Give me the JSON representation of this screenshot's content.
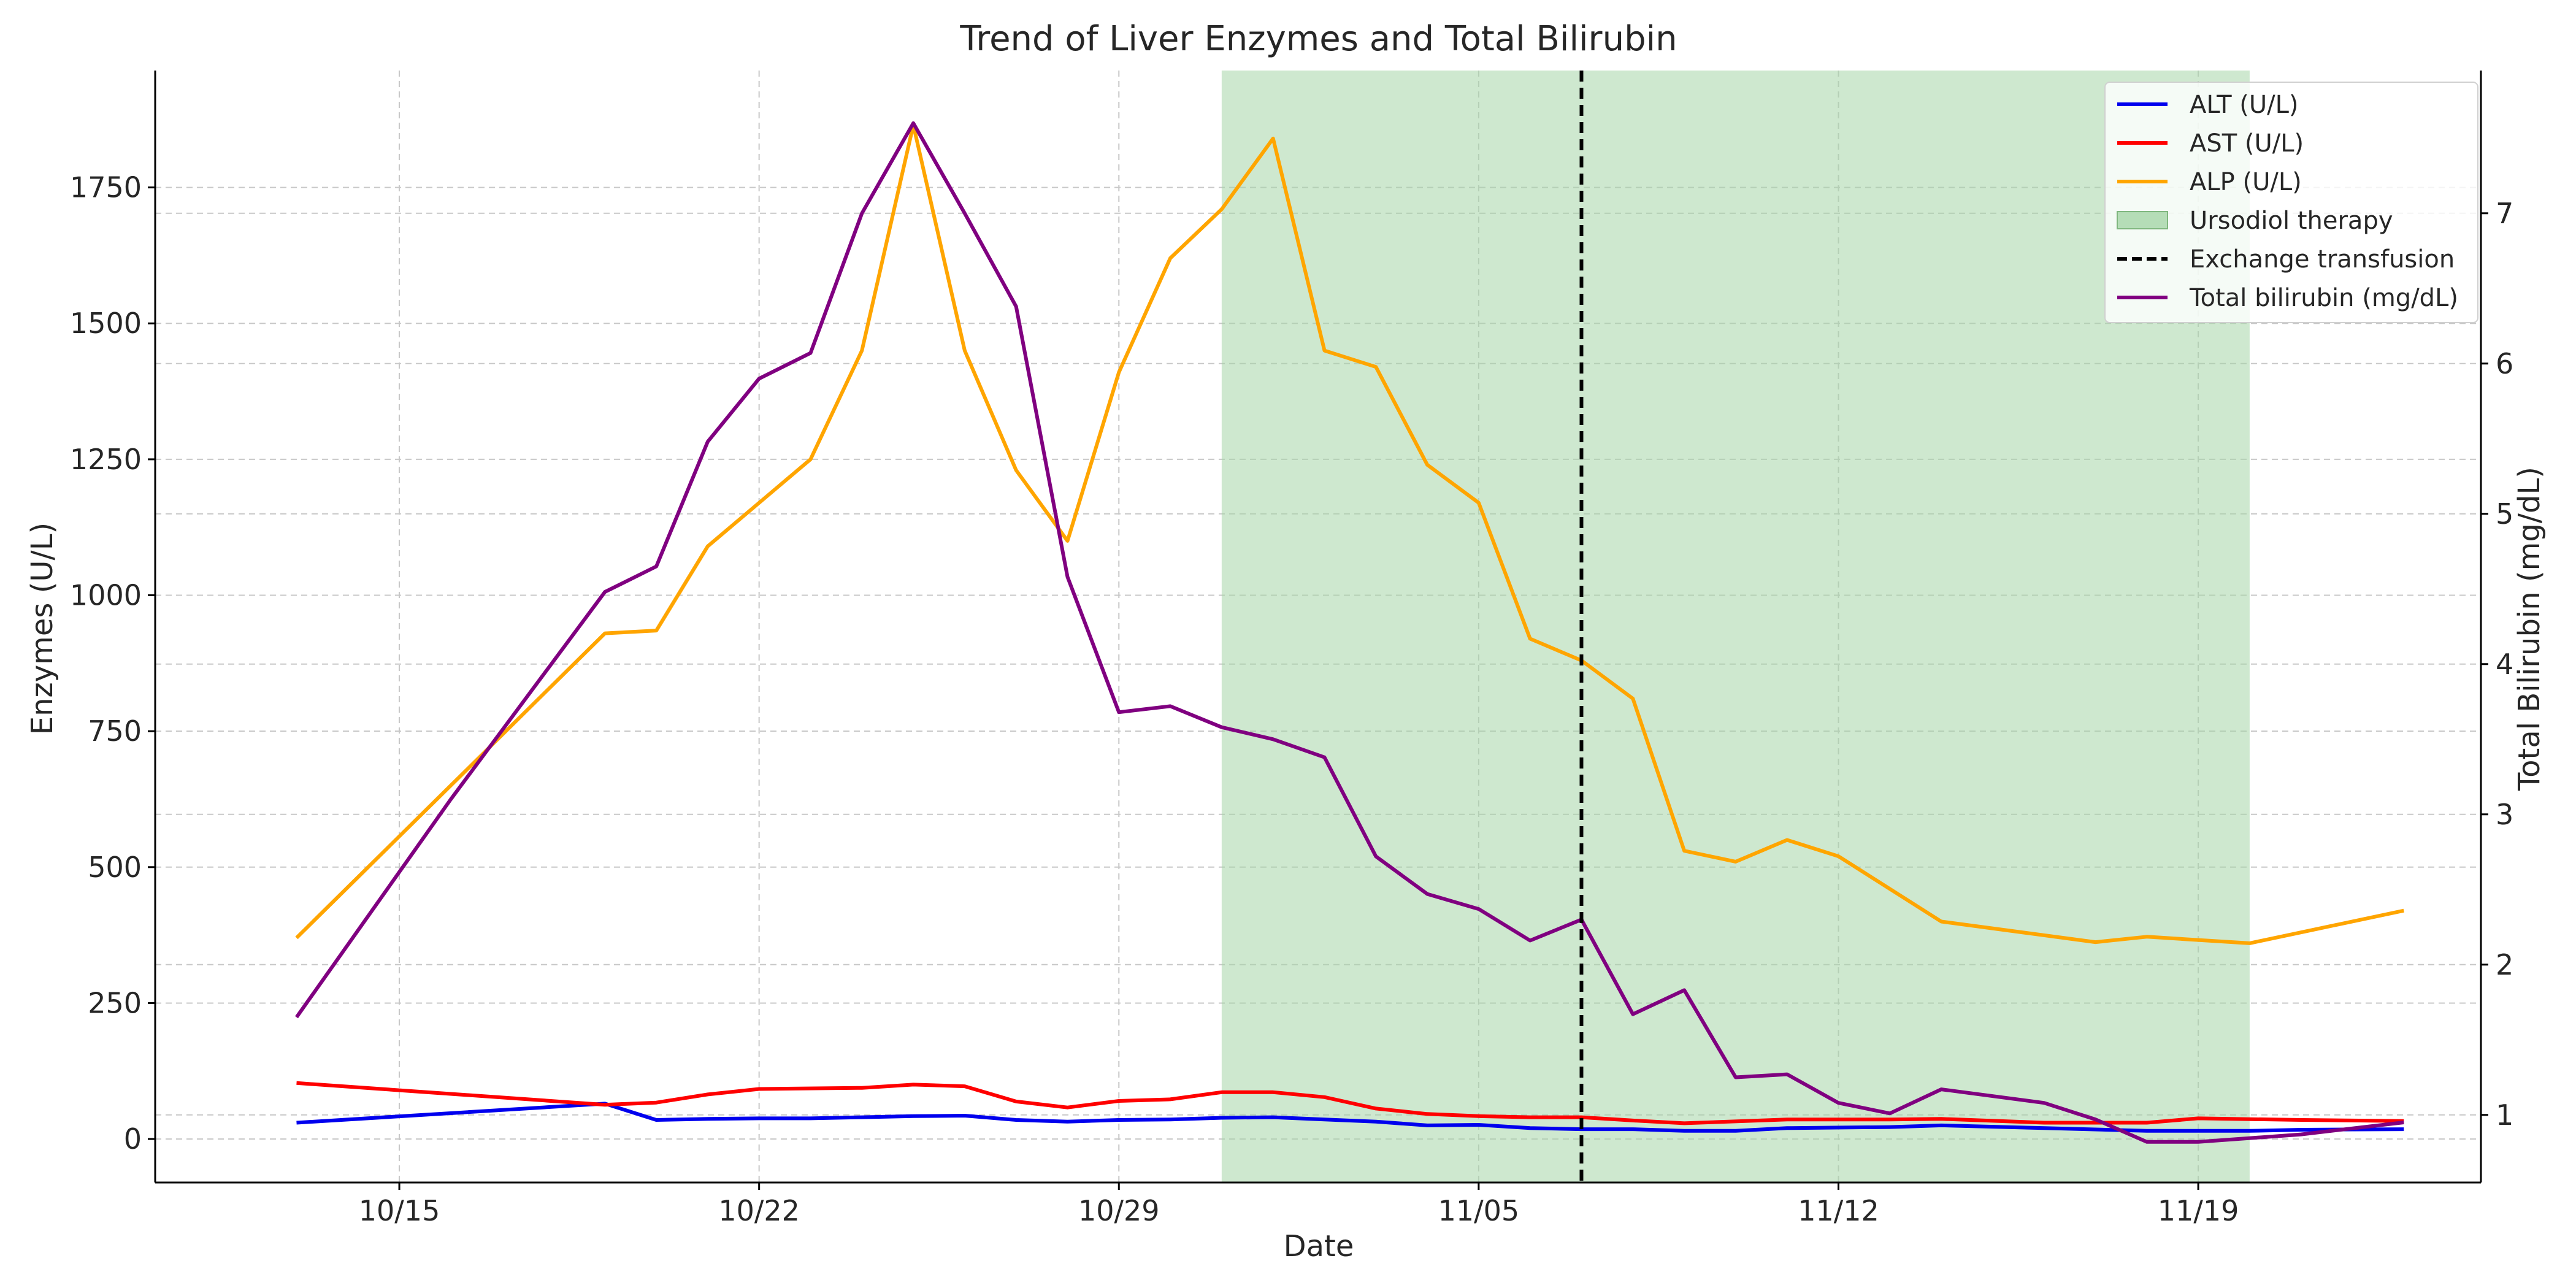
{
  "chart_data": {
    "type": "line",
    "title": "Trend of Liver Enzymes and Total Bilirubin",
    "xlabel": "Date",
    "ylabel_left": "Enzymes (U/L)",
    "ylabel_right": "Total Bilirubin (mg/dL)",
    "x_ticks": [
      "10/15",
      "10/22",
      "10/29",
      "11/05",
      "11/12",
      "11/19"
    ],
    "x_tick_dates": [
      "2023-10-15",
      "2023-10-22",
      "2023-10-29",
      "2023-11-05",
      "2023-11-12",
      "2023-11-19"
    ],
    "xlim": [
      "2023-10-10T06:00",
      "2023-11-24T12:00"
    ],
    "ylim_left": [
      -80,
      1965
    ],
    "y_ticks_left": [
      0,
      250,
      500,
      750,
      1000,
      1250,
      1500,
      1750
    ],
    "ylim_right": [
      0.55,
      7.95
    ],
    "y_ticks_right": [
      1,
      2,
      3,
      4,
      5,
      6,
      7
    ],
    "grid": true,
    "legend_position": "top-right",
    "shaded_region": {
      "label": "Ursodiol therapy",
      "start": "2023-10-31",
      "end": "2023-11-20",
      "color": "#a5d6a7"
    },
    "vline": {
      "label": "Exchange transfusion",
      "date": "2023-11-07",
      "color": "#000000"
    },
    "series": [
      {
        "name": "ALT (U/L)",
        "axis": "left",
        "color": "#0000ee",
        "points": [
          [
            "2023-10-13",
            30
          ],
          [
            "2023-10-19",
            65
          ],
          [
            "2023-10-20",
            35
          ],
          [
            "2023-10-21",
            37
          ],
          [
            "2023-10-22",
            38
          ],
          [
            "2023-10-23",
            38
          ],
          [
            "2023-10-24",
            40
          ],
          [
            "2023-10-25",
            42
          ],
          [
            "2023-10-26",
            43
          ],
          [
            "2023-10-27",
            35
          ],
          [
            "2023-10-28",
            32
          ],
          [
            "2023-10-29",
            35
          ],
          [
            "2023-10-30",
            36
          ],
          [
            "2023-10-31",
            39
          ],
          [
            "2023-11-01",
            40
          ],
          [
            "2023-11-02",
            36
          ],
          [
            "2023-11-03",
            32
          ],
          [
            "2023-11-04",
            25
          ],
          [
            "2023-11-05",
            26
          ],
          [
            "2023-11-06",
            20
          ],
          [
            "2023-11-07",
            18
          ],
          [
            "2023-11-08",
            18
          ],
          [
            "2023-11-09",
            15
          ],
          [
            "2023-11-10",
            15
          ],
          [
            "2023-11-11",
            20
          ],
          [
            "2023-11-13",
            22
          ],
          [
            "2023-11-14",
            25
          ],
          [
            "2023-11-16",
            20
          ],
          [
            "2023-11-18",
            15
          ],
          [
            "2023-11-20",
            15
          ],
          [
            "2023-11-21",
            17
          ],
          [
            "2023-11-23",
            18
          ]
        ]
      },
      {
        "name": "AST (U/L)",
        "axis": "left",
        "color": "#ff0000",
        "points": [
          [
            "2023-10-13",
            103
          ],
          [
            "2023-10-19",
            63
          ],
          [
            "2023-10-20",
            67
          ],
          [
            "2023-10-21",
            82
          ],
          [
            "2023-10-22",
            92
          ],
          [
            "2023-10-24",
            94
          ],
          [
            "2023-10-25",
            100
          ],
          [
            "2023-10-26",
            97
          ],
          [
            "2023-10-27",
            69
          ],
          [
            "2023-10-28",
            58
          ],
          [
            "2023-10-29",
            70
          ],
          [
            "2023-10-30",
            73
          ],
          [
            "2023-10-31",
            86
          ],
          [
            "2023-11-01",
            86
          ],
          [
            "2023-11-02",
            77
          ],
          [
            "2023-11-03",
            56
          ],
          [
            "2023-11-04",
            46
          ],
          [
            "2023-11-05",
            42
          ],
          [
            "2023-11-06",
            40
          ],
          [
            "2023-11-07",
            40
          ],
          [
            "2023-11-08",
            34
          ],
          [
            "2023-11-09",
            29
          ],
          [
            "2023-11-11",
            36
          ],
          [
            "2023-11-13",
            36
          ],
          [
            "2023-11-14",
            37
          ],
          [
            "2023-11-16",
            30
          ],
          [
            "2023-11-18",
            30
          ],
          [
            "2023-11-19",
            38
          ],
          [
            "2023-11-21",
            35
          ],
          [
            "2023-11-23",
            33
          ]
        ]
      },
      {
        "name": "ALP (U/L)",
        "axis": "left",
        "color": "#ffa500",
        "points": [
          [
            "2023-10-13",
            370
          ],
          [
            "2023-10-16",
            650
          ],
          [
            "2023-10-19",
            930
          ],
          [
            "2023-10-20",
            935
          ],
          [
            "2023-10-21",
            1090
          ],
          [
            "2023-10-23",
            1250
          ],
          [
            "2023-10-24",
            1450
          ],
          [
            "2023-10-25",
            1865
          ],
          [
            "2023-10-26",
            1450
          ],
          [
            "2023-10-27",
            1230
          ],
          [
            "2023-10-28",
            1100
          ],
          [
            "2023-10-29",
            1410
          ],
          [
            "2023-10-30",
            1620
          ],
          [
            "2023-10-31",
            1710
          ],
          [
            "2023-11-01",
            1840
          ],
          [
            "2023-11-02",
            1450
          ],
          [
            "2023-11-03",
            1420
          ],
          [
            "2023-11-04",
            1240
          ],
          [
            "2023-11-05",
            1170
          ],
          [
            "2023-11-06",
            920
          ],
          [
            "2023-11-07",
            880
          ],
          [
            "2023-11-08",
            810
          ],
          [
            "2023-11-09",
            530
          ],
          [
            "2023-11-10",
            510
          ],
          [
            "2023-11-11",
            550
          ],
          [
            "2023-11-12",
            520
          ],
          [
            "2023-11-14",
            400
          ],
          [
            "2023-11-17",
            362
          ],
          [
            "2023-11-18",
            372
          ],
          [
            "2023-11-20",
            360
          ],
          [
            "2023-11-23",
            420
          ]
        ]
      },
      {
        "name": "Total bilirubin (mg/dL)",
        "axis": "right",
        "color": "#800080",
        "points": [
          [
            "2023-10-13",
            1.65
          ],
          [
            "2023-10-16",
            3.1
          ],
          [
            "2023-10-19",
            4.48
          ],
          [
            "2023-10-20",
            4.65
          ],
          [
            "2023-10-21",
            5.48
          ],
          [
            "2023-10-22",
            5.9
          ],
          [
            "2023-10-23",
            6.07
          ],
          [
            "2023-10-24",
            7.0
          ],
          [
            "2023-10-25",
            7.6
          ],
          [
            "2023-10-26",
            7.0
          ],
          [
            "2023-10-27",
            6.38
          ],
          [
            "2023-10-28",
            4.58
          ],
          [
            "2023-10-29",
            3.68
          ],
          [
            "2023-10-30",
            3.72
          ],
          [
            "2023-10-31",
            3.58
          ],
          [
            "2023-11-01",
            3.5
          ],
          [
            "2023-11-02",
            3.38
          ],
          [
            "2023-11-03",
            2.72
          ],
          [
            "2023-11-04",
            2.47
          ],
          [
            "2023-11-05",
            2.37
          ],
          [
            "2023-11-06",
            2.16
          ],
          [
            "2023-11-07",
            2.3
          ],
          [
            "2023-11-08",
            1.67
          ],
          [
            "2023-11-09",
            1.83
          ],
          [
            "2023-11-10",
            1.25
          ],
          [
            "2023-11-11",
            1.27
          ],
          [
            "2023-11-12",
            1.08
          ],
          [
            "2023-11-13",
            1.01
          ],
          [
            "2023-11-14",
            1.17
          ],
          [
            "2023-11-16",
            1.08
          ],
          [
            "2023-11-17",
            0.97
          ],
          [
            "2023-11-18",
            0.82
          ],
          [
            "2023-11-19",
            0.82
          ],
          [
            "2023-11-21",
            0.87
          ],
          [
            "2023-11-23",
            0.95
          ]
        ]
      }
    ],
    "legend": [
      {
        "label": "ALT (U/L)",
        "kind": "line",
        "color": "#0000ee"
      },
      {
        "label": "AST (U/L)",
        "kind": "line",
        "color": "#ff0000"
      },
      {
        "label": "ALP (U/L)",
        "kind": "line",
        "color": "#ffa500"
      },
      {
        "label": "Ursodiol therapy",
        "kind": "patch",
        "color": "#a5d6a7"
      },
      {
        "label": "Exchange transfusion",
        "kind": "dashed",
        "color": "#000000"
      },
      {
        "label": "Total bilirubin (mg/dL)",
        "kind": "line",
        "color": "#800080"
      }
    ]
  }
}
